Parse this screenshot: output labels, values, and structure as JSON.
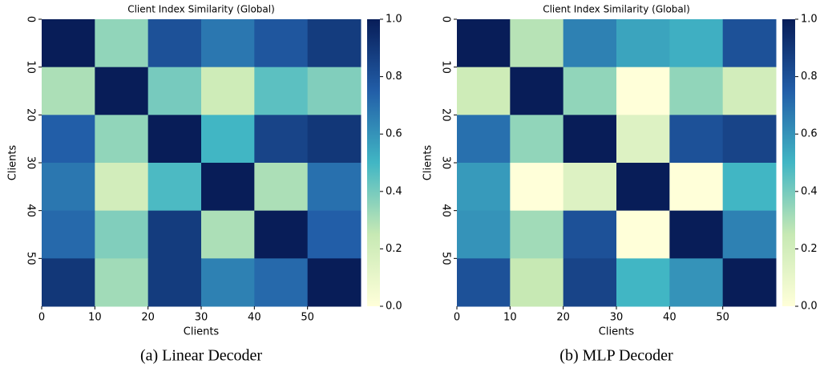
{
  "chart_data": [
    {
      "type": "heatmap",
      "title": "Client Index Similarity (Global)",
      "xlabel": "Clients",
      "ylabel": "Clients",
      "caption": "(a) Linear Decoder",
      "bins": [
        0,
        10,
        20,
        30,
        40,
        50,
        60
      ],
      "values": [
        [
          1.0,
          0.35,
          0.8,
          0.68,
          0.78,
          0.88
        ],
        [
          0.3,
          1.0,
          0.4,
          0.22,
          0.45,
          0.38
        ],
        [
          0.75,
          0.35,
          1.0,
          0.5,
          0.85,
          0.9
        ],
        [
          0.68,
          0.2,
          0.48,
          1.0,
          0.3,
          0.7
        ],
        [
          0.72,
          0.38,
          0.88,
          0.3,
          1.0,
          0.75
        ],
        [
          0.9,
          0.32,
          0.88,
          0.65,
          0.72,
          1.0
        ]
      ],
      "xlim": [
        0,
        60
      ],
      "ylim": [
        60,
        0
      ],
      "xticks": [
        0,
        10,
        20,
        30,
        40,
        50
      ],
      "yticks": [
        0,
        10,
        20,
        30,
        40,
        50
      ],
      "clim": [
        0,
        1
      ],
      "cticks": [
        {
          "value": 0,
          "label": "0.0"
        },
        0.2,
        0.4,
        0.6,
        0.8,
        {
          "value": 1,
          "label": "1.0"
        }
      ],
      "colormap": [
        "#ffffd9",
        "#c7e9b4",
        "#41b6c4",
        "#225ea8",
        "#081d58"
      ]
    },
    {
      "type": "heatmap",
      "title": "Client Index Similarity (Global)",
      "xlabel": "Clients",
      "ylabel": "Clients",
      "caption": "(b) MLP Decoder",
      "bins": [
        0,
        10,
        20,
        30,
        40,
        50,
        60
      ],
      "values": [
        [
          1.0,
          0.28,
          0.65,
          0.55,
          0.52,
          0.8
        ],
        [
          0.22,
          1.0,
          0.35,
          0.0,
          0.35,
          0.2
        ],
        [
          0.7,
          0.35,
          1.0,
          0.15,
          0.8,
          0.85
        ],
        [
          0.58,
          0.0,
          0.15,
          1.0,
          0.0,
          0.5
        ],
        [
          0.6,
          0.32,
          0.8,
          0.0,
          1.0,
          0.65
        ],
        [
          0.8,
          0.25,
          0.85,
          0.5,
          0.6,
          1.0
        ]
      ],
      "xlim": [
        0,
        60
      ],
      "ylim": [
        60,
        0
      ],
      "xticks": [
        0,
        10,
        20,
        30,
        40,
        50
      ],
      "yticks": [
        0,
        10,
        20,
        30,
        40,
        50
      ],
      "clim": [
        0,
        1
      ],
      "cticks": [
        {
          "value": 0,
          "label": "0.0"
        },
        0.2,
        0.4,
        0.6,
        0.8,
        {
          "value": 1,
          "label": "1.0"
        }
      ],
      "colormap": [
        "#ffffd9",
        "#c7e9b4",
        "#41b6c4",
        "#225ea8",
        "#081d58"
      ]
    }
  ]
}
